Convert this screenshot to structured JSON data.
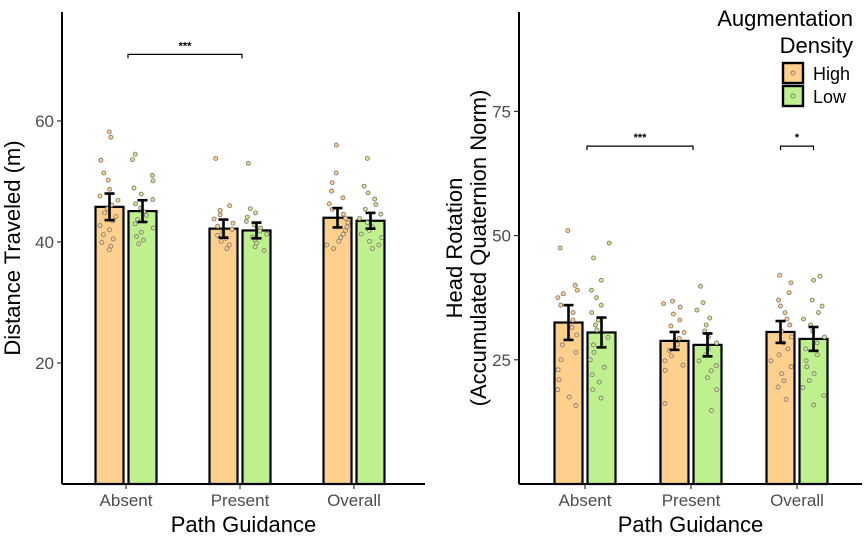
{
  "chart_data": [
    {
      "type": "bar",
      "panel": "left",
      "xlabel": "Path Guidance",
      "ylabel": "Distance Traveled (m)",
      "ylabel_lines": [
        "Distance Traveled (m)"
      ],
      "ylim": [
        0,
        78
      ],
      "yticks": [
        20,
        40,
        60
      ],
      "categories": [
        "Absent",
        "Present",
        "Overall"
      ],
      "series": [
        {
          "name": "High",
          "values": [
            45.8,
            42.2,
            44.0
          ],
          "errors": [
            2.2,
            1.5,
            1.6
          ]
        },
        {
          "name": "Low",
          "values": [
            45.1,
            41.9,
            43.5
          ],
          "errors": [
            1.8,
            1.3,
            1.3
          ]
        }
      ],
      "points": [
        [
          [
            58.2,
            57.3,
            53.5,
            51.4,
            50.2,
            48.7,
            47.6,
            46.9,
            46.1,
            45.5,
            44.8,
            44.2,
            43.5,
            42.7,
            42.0,
            41.2,
            40.5,
            39.9,
            39.3,
            38.7
          ],
          [
            54.5,
            53.6,
            51.0,
            50.1,
            48.9,
            47.9,
            47.0,
            46.3,
            45.6,
            45.0,
            44.4,
            43.7,
            43.0,
            42.3,
            41.6,
            40.9,
            40.3,
            39.7
          ]
        ],
        [
          [
            53.8,
            46.0,
            45.2,
            44.5,
            43.8,
            43.1,
            42.6,
            42.1,
            41.6,
            41.1,
            40.6,
            40.1,
            39.5,
            38.9
          ],
          [
            53.0,
            45.5,
            44.8,
            44.1,
            43.4,
            42.8,
            42.3,
            41.8,
            41.3,
            40.8,
            40.3,
            39.8,
            39.2,
            38.6
          ]
        ],
        [
          [
            56.0,
            51.4,
            49.8,
            48.4,
            47.3,
            46.3,
            45.4,
            44.6,
            43.9,
            43.2,
            42.5,
            41.9,
            41.3,
            40.7,
            40.1,
            39.5,
            38.9
          ],
          [
            53.8,
            49.2,
            48.1,
            47.1,
            46.2,
            45.4,
            44.6,
            43.9,
            43.2,
            42.5,
            41.9,
            41.3,
            40.7,
            40.1,
            39.5,
            38.9
          ]
        ]
      ],
      "significance": [
        {
          "from": "Absent",
          "to": "Present",
          "label": "***",
          "y": 71.0
        }
      ]
    },
    {
      "type": "bar",
      "panel": "right",
      "xlabel": "Path Guidance",
      "ylabel": "Head Rotation (Accumulated Quaternion Norm)",
      "ylabel_lines": [
        "Head Rotation",
        "(Accumulated Quaternion Norm)"
      ],
      "ylim": [
        0,
        95
      ],
      "yticks": [
        25,
        50,
        75
      ],
      "categories": [
        "Absent",
        "Present",
        "Overall"
      ],
      "series": [
        {
          "name": "High",
          "values": [
            32.5,
            28.8,
            30.6
          ],
          "errors": [
            3.5,
            1.8,
            2.2
          ]
        },
        {
          "name": "Low",
          "values": [
            30.5,
            28.0,
            29.2
          ],
          "errors": [
            3.0,
            2.3,
            2.4
          ]
        }
      ],
      "points": [
        [
          [
            51.0,
            47.5,
            40.0,
            39.0,
            38.3,
            37.5,
            36.0,
            34.5,
            33.0,
            31.5,
            30.0,
            28.0,
            26.5,
            25.0,
            23.0,
            21.0,
            19.0,
            17.5,
            15.8
          ],
          [
            48.5,
            45.5,
            41.0,
            39.0,
            37.5,
            36.0,
            34.5,
            33.0,
            32.0,
            31.0,
            29.5,
            28.0,
            26.5,
            25.0,
            23.5,
            22.0,
            20.5,
            19.0,
            17.3
          ]
        ],
        [
          [
            36.8,
            36.3,
            35.6,
            34.2,
            33.0,
            31.8,
            30.5,
            29.3,
            28.1,
            26.9,
            25.8,
            24.8,
            23.9,
            22.9,
            16.2
          ],
          [
            39.8,
            36.5,
            35.0,
            33.4,
            32.0,
            30.8,
            29.6,
            28.4,
            27.2,
            26.0,
            24.8,
            23.8,
            22.8,
            21.4,
            19.0,
            14.8
          ]
        ],
        [
          [
            42.0,
            40.5,
            38.5,
            37.0,
            35.8,
            34.5,
            33.2,
            32.0,
            30.8,
            29.6,
            28.4,
            27.2,
            26.0,
            24.8,
            23.6,
            22.2,
            20.8,
            19.5,
            17.0
          ],
          [
            41.8,
            41.0,
            37.0,
            35.8,
            34.5,
            33.2,
            32.0,
            30.8,
            29.6,
            28.4,
            27.2,
            26.0,
            24.8,
            23.6,
            22.2,
            20.8,
            19.4,
            17.8,
            15.9
          ]
        ]
      ],
      "significance": [
        {
          "from": "Absent",
          "to": "Present",
          "label": "***",
          "y": 68.0
        },
        {
          "fromOffset": "Overall",
          "label": "*",
          "y": 68.0,
          "withinGroup": true
        }
      ]
    }
  ],
  "legend": {
    "title_lines": [
      "Augmentation",
      "Density"
    ],
    "items": [
      {
        "label": "High",
        "color": "#FDD08E"
      },
      {
        "label": "Low",
        "color": "#BFF08E"
      }
    ]
  },
  "colors": {
    "high": "#FDD08E",
    "low": "#BFF08E",
    "point_stroke": "#8a7d72",
    "axis": "#000000"
  }
}
